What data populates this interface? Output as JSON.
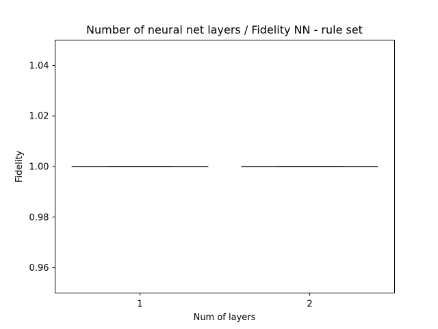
{
  "chart_data": {
    "type": "box",
    "title": "Number of neural net layers / Fidelity NN - rule set",
    "xlabel": "Num of layers",
    "ylabel": "Fidelity",
    "categories": [
      "1",
      "2"
    ],
    "ylim": [
      0.95,
      1.05
    ],
    "yticks": [
      "0.96",
      "0.98",
      "1.00",
      "1.02",
      "1.04"
    ],
    "ytick_values": [
      0.96,
      0.98,
      1.0,
      1.02,
      1.04
    ],
    "grid": false,
    "boxes": [
      {
        "category": "1",
        "min": 1.0,
        "q1": 1.0,
        "median": 1.0,
        "q3": 1.0,
        "max": 1.0
      },
      {
        "category": "2",
        "min": 1.0,
        "q1": 1.0,
        "median": 1.0,
        "q3": 1.0,
        "max": 1.0
      }
    ],
    "colors": {
      "box": "#3d3d3d",
      "axes": "#000000"
    }
  }
}
